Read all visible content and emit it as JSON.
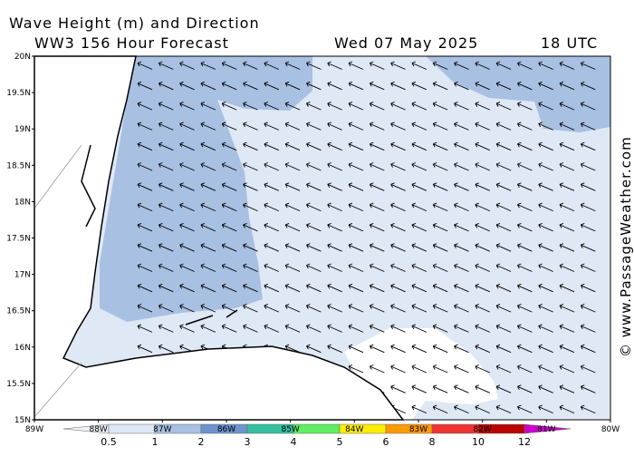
{
  "header": {
    "title": "Wave Height (m) and Direction",
    "subtitle": "WW3 156 Hour Forecast",
    "date": "Wed 07 May 2025",
    "time": "18 UTC"
  },
  "map": {
    "lat_labels": [
      "20N",
      "19.5N",
      "19N",
      "18.5N",
      "18N",
      "17.5N",
      "17N",
      "16.5N",
      "16N",
      "15.5N",
      "15N"
    ],
    "lon_labels": [
      "89W",
      "88W",
      "87W",
      "86W",
      "85W",
      "84W",
      "83W",
      "82W",
      "81W",
      "80W"
    ]
  },
  "colorbar": {
    "labels": [
      0.5,
      1,
      2,
      3,
      4,
      5,
      6,
      8,
      10,
      12
    ]
  },
  "watermark": "© www.PassageWeather.com"
}
